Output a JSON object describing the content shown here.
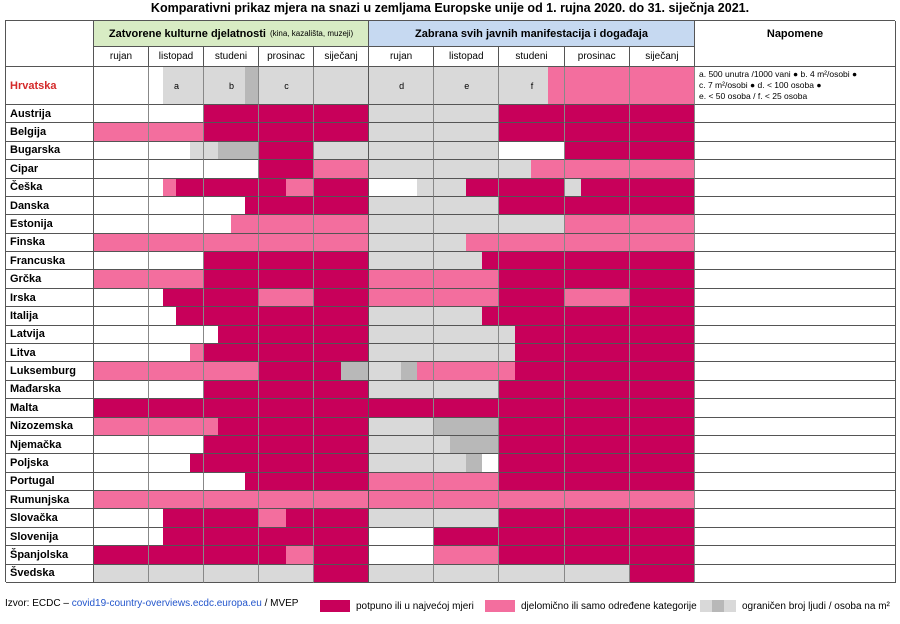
{
  "title": "Komparativni prikaz mjera na snazi u zemljama Europske unije od 1. rujna 2020. do 31. siječnja 2021.",
  "groups": [
    {
      "title": "Zatvorene kulturne djelatnosti",
      "subtitle": "(kina, kazališta, muzeji)",
      "color": "#d8ecc4"
    },
    {
      "title": "Zabrana svih javnih manifestacija i događaja",
      "color": "#c6d9f1"
    }
  ],
  "notes_header": "Napomene",
  "months": [
    "rujan",
    "listopad",
    "studeni",
    "prosinac",
    "siječanj"
  ],
  "palette": {
    "w": "#ffffff",
    "g": "#d9d9d9",
    "d": "#b8b8b8",
    "p": "#f36e9e",
    "m": "#c8005a"
  },
  "croatia": {
    "name": "Hrvatska",
    "cells": [
      "wwww",
      "wggg",
      "gggd",
      "gggg",
      "gggg",
      "gggg",
      "gggg",
      "gggp",
      "pppp",
      "pppp"
    ],
    "marks": [
      {
        "text": "a",
        "col": 1
      },
      {
        "text": "b",
        "col": 2
      },
      {
        "text": "c",
        "col": 3
      },
      {
        "text": "d",
        "col": 5
      },
      {
        "text": "e",
        "col": 6
      },
      {
        "text": "f",
        "col": 7
      }
    ],
    "notes": [
      "a. 500 unutra /1000 vani ● b. 4 m²/osobi ●",
      "c. 7 m²/osobi ● d. < 100 osoba ●",
      "e. < 50 osoba / f. < 25 osoba"
    ]
  },
  "countries": [
    {
      "name": "Austrija",
      "cells": [
        "wwww",
        "wwww",
        "mmmm",
        "mmmm",
        "mmmm",
        "gggg",
        "gggg",
        "mmmm",
        "mmmm",
        "mmmm"
      ]
    },
    {
      "name": "Belgija",
      "cells": [
        "pppp",
        "pppp",
        "mmmm",
        "mmmm",
        "mmmm",
        "gggg",
        "gggg",
        "mmmm",
        "mmmm",
        "mmmm"
      ]
    },
    {
      "name": "Bugarska",
      "cells": [
        "wwww",
        "wwwg",
        "gddd",
        "mmmm",
        "gggg",
        "gggg",
        "gggg",
        "wwww",
        "mmmm",
        "mmmm"
      ]
    },
    {
      "name": "Cipar",
      "cells": [
        "wwww",
        "wwww",
        "wwww",
        "mmmm",
        "pppp",
        "gggg",
        "gggg",
        "ggpp",
        "pppp",
        "pppp"
      ]
    },
    {
      "name": "Češka",
      "cells": [
        "wwww",
        "wpmm",
        "mmmm",
        "mmpp",
        "mmmm",
        "wwwg",
        "ggmm",
        "mmmm",
        "gmmm",
        "mmmm"
      ]
    },
    {
      "name": "Danska",
      "cells": [
        "wwww",
        "wwww",
        "wwwm",
        "mmmm",
        "mmmm",
        "gggg",
        "gggg",
        "mmmm",
        "mmmm",
        "mmmm"
      ]
    },
    {
      "name": "Estonija",
      "cells": [
        "wwww",
        "wwww",
        "wwpp",
        "pppp",
        "pppp",
        "gggg",
        "gggg",
        "gggg",
        "pppp",
        "pppp"
      ]
    },
    {
      "name": "Finska",
      "cells": [
        "pppp",
        "pppp",
        "pppp",
        "pppp",
        "pppp",
        "gggg",
        "ggpp",
        "pppp",
        "pppp",
        "pppp"
      ]
    },
    {
      "name": "Francuska",
      "cells": [
        "wwww",
        "wwww",
        "mmmm",
        "mmmm",
        "mmmm",
        "gggg",
        "gggm",
        "mmmm",
        "mmmm",
        "mmmm"
      ]
    },
    {
      "name": "Grčka",
      "cells": [
        "pppp",
        "pppp",
        "mmmm",
        "mmmm",
        "mmmm",
        "pppp",
        "pppp",
        "mmmm",
        "mmmm",
        "mmmm"
      ]
    },
    {
      "name": "Irska",
      "cells": [
        "wwww",
        "wmmm",
        "mmmm",
        "pppp",
        "mmmm",
        "pppp",
        "pppp",
        "mmmm",
        "pppp",
        "mmmm"
      ]
    },
    {
      "name": "Italija",
      "cells": [
        "wwww",
        "wwmm",
        "mmmm",
        "mmmm",
        "mmmm",
        "gggg",
        "gggm",
        "mmmm",
        "mmmm",
        "mmmm"
      ]
    },
    {
      "name": "Latvija",
      "cells": [
        "wwww",
        "wwww",
        "wmmm",
        "mmmm",
        "mmmm",
        "gggg",
        "gggg",
        "gmmm",
        "mmmm",
        "mmmm"
      ]
    },
    {
      "name": "Litva",
      "cells": [
        "wwww",
        "wwwp",
        "mmmm",
        "mmmm",
        "mmmm",
        "gggg",
        "gggg",
        "gmmm",
        "mmmm",
        "mmmm"
      ]
    },
    {
      "name": "Luksemburg",
      "cells": [
        "pppp",
        "pppp",
        "pppp",
        "mmmm",
        "mmdd",
        "ggdp",
        "pppp",
        "pmmm",
        "mmmm",
        "mmmm"
      ]
    },
    {
      "name": "Mađarska",
      "cells": [
        "wwww",
        "wwww",
        "mmmm",
        "mmmm",
        "mmmm",
        "gggg",
        "gggg",
        "mmmm",
        "mmmm",
        "mmmm"
      ]
    },
    {
      "name": "Malta",
      "cells": [
        "mmmm",
        "mmmm",
        "mmmm",
        "mmmm",
        "mmmm",
        "mmmm",
        "mmmm",
        "mmmm",
        "mmmm",
        "mmmm"
      ]
    },
    {
      "name": "Nizozemska",
      "cells": [
        "pppp",
        "pppp",
        "pmmm",
        "mmmm",
        "mmmm",
        "gggg",
        "dddd",
        "mmmm",
        "mmmm",
        "mmmm"
      ]
    },
    {
      "name": "Njemačka",
      "cells": [
        "wwww",
        "wwww",
        "mmmm",
        "mmmm",
        "mmmm",
        "gggg",
        "gddd",
        "mmmm",
        "mmmm",
        "mmmm"
      ]
    },
    {
      "name": "Poljska",
      "cells": [
        "wwww",
        "wwwm",
        "mmmm",
        "mmmm",
        "mmmm",
        "gggg",
        "ggdw",
        "mmmm",
        "mmmm",
        "mmmm"
      ]
    },
    {
      "name": "Portugal",
      "cells": [
        "wwww",
        "wwww",
        "wwwm",
        "mmmm",
        "mmmm",
        "pppp",
        "pppp",
        "mmmm",
        "mmmm",
        "mmmm"
      ]
    },
    {
      "name": "Rumunjska",
      "cells": [
        "pppp",
        "pppp",
        "pppp",
        "pppp",
        "pppp",
        "pppp",
        "pppp",
        "pppp",
        "pppp",
        "pppp"
      ]
    },
    {
      "name": "Slovačka",
      "cells": [
        "wwww",
        "wmmm",
        "mmmm",
        "ppmm",
        "mmmm",
        "gggg",
        "gggg",
        "mmmm",
        "mmmm",
        "mmmm"
      ]
    },
    {
      "name": "Slovenija",
      "cells": [
        "wwww",
        "wmmm",
        "mmmm",
        "mmmm",
        "mmmm",
        "wwww",
        "mmmm",
        "mmmm",
        "mmmm",
        "mmmm"
      ]
    },
    {
      "name": "Španjolska",
      "cells": [
        "mmmm",
        "mmmm",
        "mmmm",
        "mmpp",
        "mmmm",
        "wwww",
        "pppp",
        "mmmm",
        "mmmm",
        "mmmm"
      ]
    },
    {
      "name": "Švedska",
      "cells": [
        "gggg",
        "gggg",
        "gggg",
        "gggg",
        "mmmm",
        "gggg",
        "gggg",
        "gggg",
        "gggg",
        "mmmm"
      ]
    }
  ],
  "source": {
    "prefix": "Izvor: ECDC – ",
    "link": "covid19-country-overviews.ecdc.europa.eu",
    "suffix": " / MVEP"
  },
  "legend": [
    {
      "codes": "m",
      "label": "potpuno ili u najvećoj mjeri"
    },
    {
      "codes": "p",
      "label": "djelomično ili samo određene kategorije"
    },
    {
      "codes": "gdg",
      "label": "ograničen broj ljudi / osoba na m²"
    }
  ]
}
